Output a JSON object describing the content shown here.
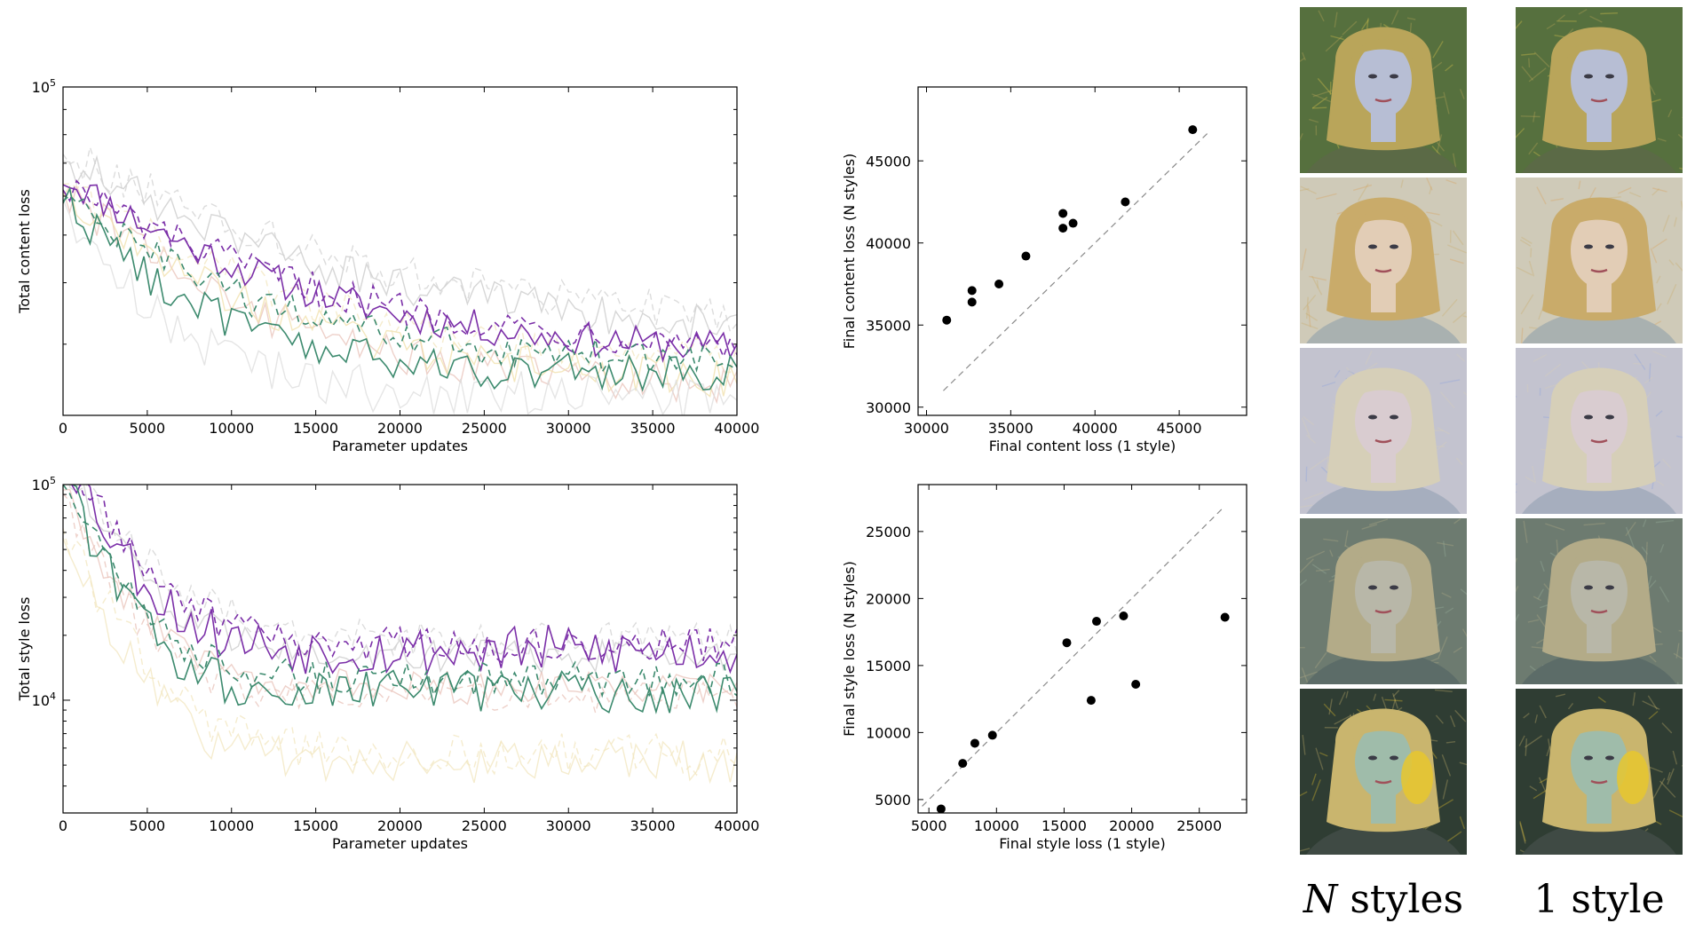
{
  "chart_data": [
    {
      "type": "line",
      "id": "content_curves",
      "title": "",
      "xlabel": "Parameter updates",
      "ylabel": "Total content loss",
      "xlim": [
        0,
        40000
      ],
      "yscale": "log",
      "ylim": [
        21500,
        100000
      ],
      "xticks": [
        "0",
        "5000",
        "10000",
        "15000",
        "20000",
        "25000",
        "30000",
        "35000",
        "40000"
      ],
      "ytick_base": "10",
      "ytick_exp": "5",
      "grid": false,
      "series": [
        {
          "color": "#7b2fa8",
          "dash": "solid",
          "opacity": 1,
          "y0": 66000,
          "y1": 28500,
          "tau": 11000,
          "noise": 0.035
        },
        {
          "color": "#7b2fa8",
          "dash": "dashed",
          "opacity": 1,
          "y0": 64000,
          "y1": 29000,
          "tau": 12000,
          "noise": 0.035
        },
        {
          "color": "#3c8a6e",
          "dash": "solid",
          "opacity": 1,
          "y0": 60000,
          "y1": 26000,
          "tau": 6500,
          "noise": 0.04
        },
        {
          "color": "#3c8a6e",
          "dash": "dashed",
          "opacity": 1,
          "y0": 60000,
          "y1": 27500,
          "tau": 9000,
          "noise": 0.035
        },
        {
          "color": "#c8c8c8",
          "dash": "solid",
          "opacity": 0.9,
          "y0": 72000,
          "y1": 31000,
          "tau": 13000,
          "noise": 0.04
        },
        {
          "color": "#d0d0d0",
          "dash": "dashed",
          "opacity": 0.9,
          "y0": 74000,
          "y1": 32000,
          "tau": 14000,
          "noise": 0.04
        },
        {
          "color": "#e8c2b8",
          "dash": "solid",
          "opacity": 0.9,
          "y0": 62000,
          "y1": 24500,
          "tau": 9000,
          "noise": 0.04
        },
        {
          "color": "#f0dfa8",
          "dash": "solid",
          "opacity": 0.9,
          "y0": 60000,
          "y1": 25000,
          "tau": 10000,
          "noise": 0.04
        },
        {
          "color": "#f2e6bd",
          "dash": "dashed",
          "opacity": 0.9,
          "y0": 63000,
          "y1": 27000,
          "tau": 11000,
          "noise": 0.04
        },
        {
          "color": "#dcdcdc",
          "dash": "solid",
          "opacity": 0.9,
          "y0": 58000,
          "y1": 23500,
          "tau": 5000,
          "noise": 0.05
        }
      ]
    },
    {
      "type": "line",
      "id": "style_curves",
      "title": "",
      "xlabel": "Parameter updates",
      "ylabel": "Total style loss",
      "xlim": [
        0,
        40000
      ],
      "yscale": "log",
      "ylim": [
        3000,
        100000
      ],
      "xticks": [
        "0",
        "5000",
        "10000",
        "15000",
        "20000",
        "25000",
        "30000",
        "35000",
        "40000"
      ],
      "ytick_base": "10",
      "ytick_exp_top": "5",
      "ytick_exp_mid": "4",
      "grid": false,
      "series": [
        {
          "color": "#7b2fa8",
          "dash": "solid",
          "opacity": 1,
          "y0": 150000,
          "y1": 17000,
          "tau": 2500,
          "noise": 0.12
        },
        {
          "color": "#7b2fa8",
          "dash": "dashed",
          "opacity": 1,
          "y0": 140000,
          "y1": 18000,
          "tau": 3000,
          "noise": 0.08
        },
        {
          "color": "#3c8a6e",
          "dash": "solid",
          "opacity": 1,
          "y0": 110000,
          "y1": 11000,
          "tau": 2200,
          "noise": 0.1
        },
        {
          "color": "#3c8a6e",
          "dash": "dashed",
          "opacity": 1,
          "y0": 105000,
          "y1": 12500,
          "tau": 2500,
          "noise": 0.08
        },
        {
          "color": "#c8c8c8",
          "dash": "solid",
          "opacity": 0.9,
          "y0": 120000,
          "y1": 16000,
          "tau": 3000,
          "noise": 0.08
        },
        {
          "color": "#d0d0d0",
          "dash": "dashed",
          "opacity": 0.9,
          "y0": 125000,
          "y1": 19000,
          "tau": 3500,
          "noise": 0.08
        },
        {
          "color": "#e8c2b8",
          "dash": "solid",
          "opacity": 0.9,
          "y0": 95000,
          "y1": 11500,
          "tau": 2500,
          "noise": 0.08
        },
        {
          "color": "#e8c2b8",
          "dash": "dashed",
          "opacity": 0.9,
          "y0": 90000,
          "y1": 10500,
          "tau": 2500,
          "noise": 0.08
        },
        {
          "color": "#f2e6bd",
          "dash": "solid",
          "opacity": 0.9,
          "y0": 55000,
          "y1": 5200,
          "tau": 2500,
          "noise": 0.1
        },
        {
          "color": "#f2e6bd",
          "dash": "dashed",
          "opacity": 0.9,
          "y0": 60000,
          "y1": 5600,
          "tau": 2800,
          "noise": 0.1
        }
      ]
    },
    {
      "type": "scatter",
      "id": "content_scatter",
      "title": "",
      "xlabel": "Final content loss (1 style)",
      "ylabel": "Final content loss (N styles)",
      "xlim": [
        29500,
        49000
      ],
      "ylim": [
        29500,
        49500
      ],
      "xticks": [
        30000,
        35000,
        40000,
        45000
      ],
      "yticks": [
        30000,
        35000,
        40000,
        45000
      ],
      "diagonal": [
        31000,
        46800
      ],
      "grid": false,
      "points": [
        [
          31200,
          35300
        ],
        [
          32700,
          36400
        ],
        [
          32700,
          37100
        ],
        [
          34300,
          37500
        ],
        [
          35900,
          39200
        ],
        [
          38100,
          40900
        ],
        [
          38100,
          41800
        ],
        [
          38700,
          41200
        ],
        [
          41800,
          42500
        ],
        [
          45800,
          46900
        ]
      ]
    },
    {
      "type": "scatter",
      "id": "style_scatter",
      "title": "",
      "xlabel": "Final style loss (1 style)",
      "ylabel": "Final style loss (N styles)",
      "xlim": [
        4200,
        28500
      ],
      "ylim": [
        4000,
        28500
      ],
      "xticks": [
        5000,
        10000,
        15000,
        20000,
        25000
      ],
      "yticks": [
        5000,
        10000,
        15000,
        20000,
        25000
      ],
      "diagonal": [
        4500,
        26800
      ],
      "grid": false,
      "points": [
        [
          5900,
          4300
        ],
        [
          7500,
          7700
        ],
        [
          8400,
          9200
        ],
        [
          9700,
          9800
        ],
        [
          15200,
          16700
        ],
        [
          17000,
          12400
        ],
        [
          17400,
          18300
        ],
        [
          19400,
          18700
        ],
        [
          20300,
          13600
        ],
        [
          26900,
          18600
        ]
      ]
    }
  ],
  "gallery": {
    "column_left_label_italic": "N",
    "column_left_label_rest": " styles",
    "column_right_label": "1 style",
    "rows": [
      {
        "palette": {
          "bg": "#56703e",
          "hair": "#b9a55a",
          "face": "#b7bed4",
          "shirt": "#5b6a46",
          "accent": "#e2c94e"
        }
      },
      {
        "palette": {
          "bg": "#cfcab8",
          "hair": "#c9ab6a",
          "face": "#e2cdb6",
          "shirt": "#a9b1b0",
          "accent": "#d8a15a"
        }
      },
      {
        "palette": {
          "bg": "#c3c3cf",
          "hair": "#d6cfb8",
          "face": "#d9ccd0",
          "shirt": "#a6aebe",
          "accent": "#8aa0dd"
        }
      },
      {
        "palette": {
          "bg": "#6d7b70",
          "hair": "#b3ab88",
          "face": "#b8b7a8",
          "shirt": "#5c6c68",
          "accent": "#9ab39e"
        }
      },
      {
        "palette": {
          "bg": "#2f3d33",
          "hair": "#c9b56e",
          "face": "#9fbcaa",
          "shirt": "#3f4a44",
          "accent": "#e7c72e"
        }
      }
    ]
  }
}
